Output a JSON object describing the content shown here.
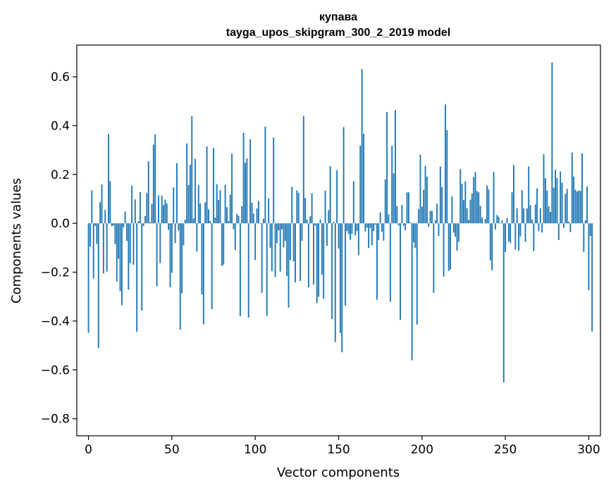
{
  "chart_data": {
    "type": "bar",
    "title": "купава",
    "subtitle": "tayga_upos_skipgram_300_2_2019 model",
    "xlabel": "Vector components",
    "ylabel": "Components values",
    "xlim": [
      -7,
      307
    ],
    "ylim": [
      -0.87,
      0.73
    ],
    "xticks": [
      0,
      50,
      100,
      150,
      200,
      250,
      300
    ],
    "xtick_labels": [
      "0",
      "50",
      "100",
      "150",
      "200",
      "250",
      "300"
    ],
    "yticks": [
      -0.8,
      -0.6,
      -0.4,
      -0.2,
      0.0,
      0.2,
      0.4,
      0.6
    ],
    "ytick_labels": [
      "−0.8",
      "−0.6",
      "−0.4",
      "−0.2",
      "0.0",
      "0.2",
      "0.4",
      "0.6"
    ],
    "bar_color": "#1f77b4",
    "grid": false,
    "series": [
      {
        "name": "купава",
        "values": [
          -0.448,
          -0.095,
          0.135,
          -0.226,
          -0.01,
          -0.084,
          -0.511,
          0.087,
          0.159,
          -0.205,
          0.055,
          -0.198,
          0.366,
          0.173,
          -0.012,
          -0.009,
          -0.085,
          -0.238,
          -0.145,
          -0.278,
          -0.335,
          -0.017,
          0.048,
          -0.072,
          -0.271,
          -0.163,
          0.154,
          -0.17,
          0.098,
          -0.444,
          0.009,
          0.128,
          -0.358,
          -0.011,
          0.03,
          0.124,
          0.254,
          0.004,
          0.08,
          0.322,
          0.364,
          -0.257,
          0.115,
          -0.163,
          0.113,
          0.075,
          0.097,
          0.081,
          -0.026,
          -0.262,
          -0.203,
          0.147,
          -0.081,
          0.247,
          -0.029,
          -0.435,
          -0.287,
          -0.09,
          0.015,
          0.327,
          0.157,
          0.24,
          0.439,
          0.02,
          0.264,
          -0.115,
          0.157,
          0.081,
          -0.291,
          -0.413,
          0.086,
          0.315,
          0.057,
          0.01,
          -0.352,
          0.309,
          0.024,
          0.16,
          0.095,
          0.136,
          -0.175,
          -0.169,
          0.158,
          0.066,
          0.009,
          0.118,
          0.285,
          -0.024,
          -0.109,
          0.039,
          0.031,
          -0.38,
          0.07,
          0.371,
          0.248,
          0.266,
          -0.386,
          0.344,
          0.085,
          0.04,
          -0.15,
          0.061,
          0.091,
          -0.002,
          -0.285,
          0.018,
          0.396,
          -0.379,
          0.101,
          -0.1,
          -0.196,
          0.351,
          -0.22,
          -0.081,
          -0.029,
          -0.198,
          -0.025,
          -0.099,
          -0.072,
          -0.216,
          -0.345,
          -0.151,
          0.15,
          -0.155,
          -0.242,
          0.135,
          0.125,
          -0.236,
          -0.072,
          0.44,
          0.104,
          0.015,
          -0.262,
          0.029,
          0.123,
          -0.251,
          -0.009,
          -0.327,
          -0.301,
          0.016,
          -0.21,
          -0.308,
          0.134,
          -0.092,
          0.054,
          0.234,
          -0.392,
          0.006,
          -0.486,
          0.218,
          -0.103,
          -0.449,
          -0.528,
          0.394,
          -0.337,
          -0.032,
          -0.044,
          -0.067,
          -0.043,
          0.172,
          -0.05,
          -0.032,
          -0.13,
          0.318,
          0.632,
          0.367,
          -0.033,
          -0.018,
          -0.101,
          -0.019,
          -0.09,
          -0.032,
          -0.006,
          -0.313,
          -0.069,
          0.045,
          -0.034,
          -0.071,
          0.18,
          0.456,
          0.036,
          -0.321,
          0.317,
          0.205,
          0.464,
          0.071,
          -0.009,
          -0.395,
          0.076,
          -0.009,
          -0.028,
          0.127,
          0.127,
          0.004,
          -0.561,
          -0.078,
          -0.101,
          -0.415,
          0.058,
          0.281,
          0.069,
          0.137,
          0.236,
          0.191,
          -0.014,
          0.051,
          0.051,
          -0.285,
          0.013,
          0.081,
          -0.052,
          0.233,
          0.149,
          -0.218,
          0.487,
          0.381,
          -0.195,
          -0.189,
          0.11,
          -0.038,
          -0.055,
          -0.112,
          -0.076,
          0.222,
          0.162,
          0.095,
          0.172,
          0.062,
          0.014,
          0.097,
          0.122,
          0.19,
          0.21,
          0.132,
          0.127,
          0.072,
          0.024,
          0.001,
          0.018,
          0.155,
          0.139,
          -0.152,
          -0.192,
          0.21,
          -0.025,
          0.034,
          0.027,
          -0.001,
          0.012,
          -0.651,
          -0.117,
          0.022,
          -0.074,
          -0.081,
          0.127,
          0.239,
          -0.107,
          0.062,
          -0.112,
          -0.054,
          0.136,
          0.061,
          -0.076,
          0.061,
          0.233,
          0.074,
          0.015,
          -0.114,
          0.077,
          0.143,
          -0.032,
          0.062,
          -0.038,
          0.283,
          0.185,
          0.134,
          0.069,
          0.047,
          0.659,
          0.146,
          0.219,
          0.185,
          -0.068,
          0.212,
          0.166,
          -0.018,
          0.121,
          0.141,
          0.006,
          -0.036,
          0.29,
          0.192,
          0.138,
          0.13,
          0.135,
          0.133,
          0.286,
          -0.117,
          0.012,
          0.15,
          -0.274,
          -0.052,
          -0.443
        ]
      }
    ]
  }
}
